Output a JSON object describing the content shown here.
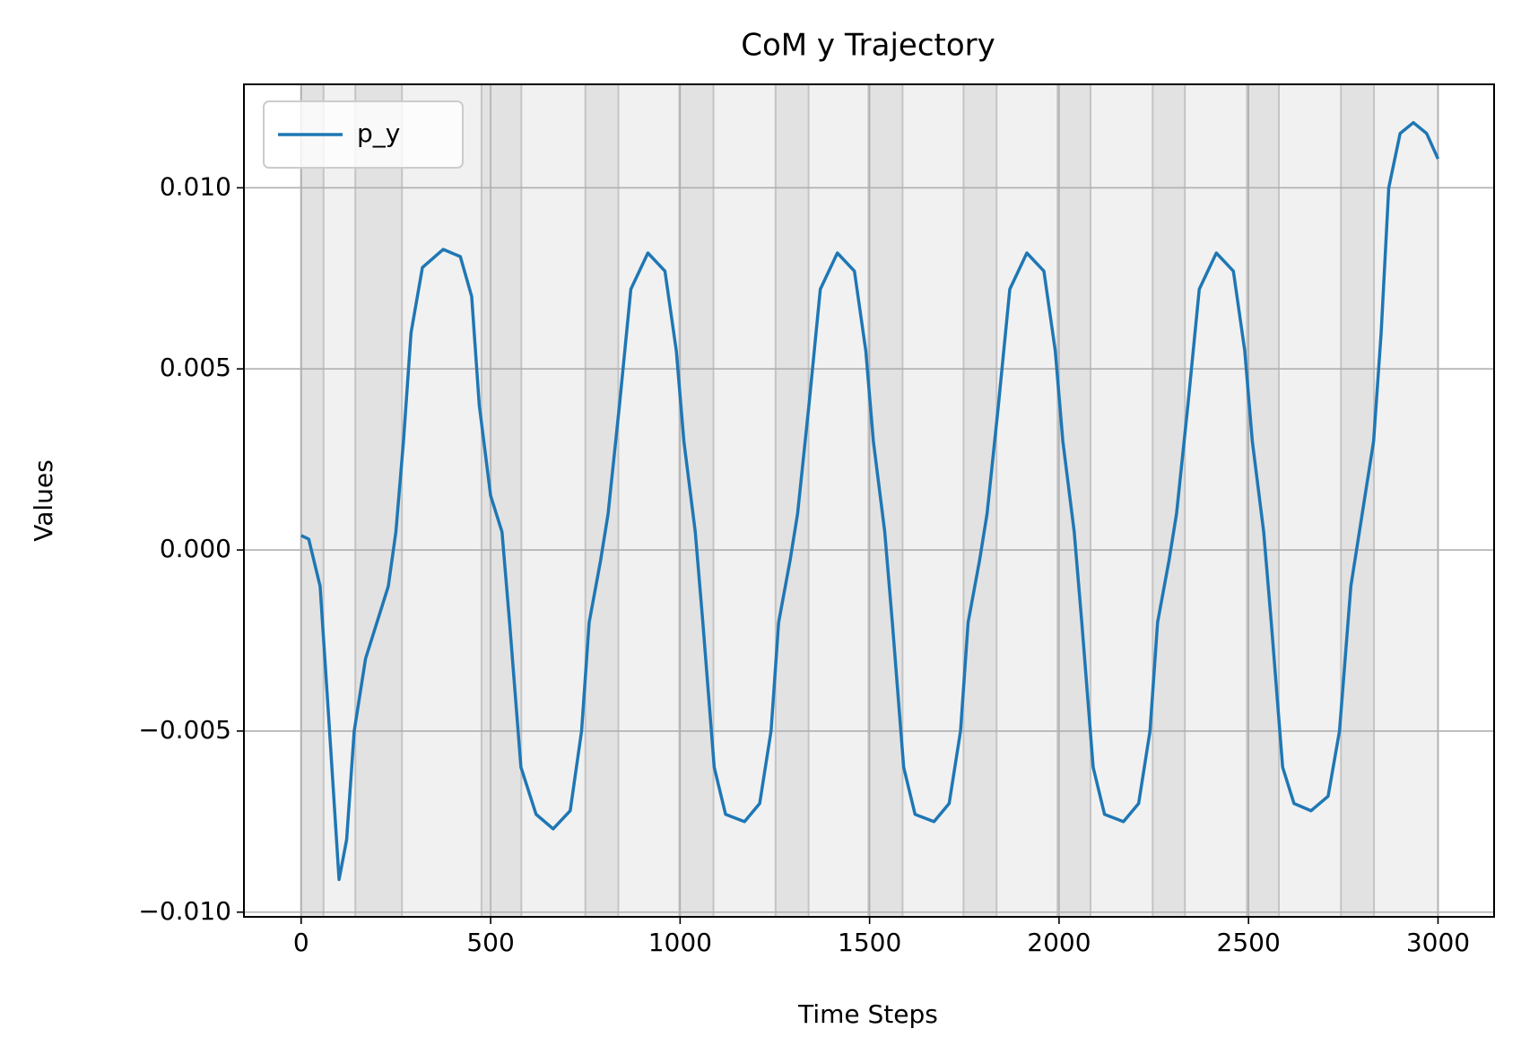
{
  "chart_data": {
    "type": "line",
    "title": "CoM y Trajectory",
    "x_label": "Time Steps",
    "y_label": "Values",
    "x": [
      0,
      20,
      50,
      75,
      100,
      120,
      140,
      170,
      200,
      230,
      250,
      270,
      290,
      320,
      375,
      420,
      450,
      470,
      500,
      530,
      550,
      580,
      620,
      665,
      710,
      740,
      760,
      790,
      810,
      840,
      870,
      915,
      960,
      990,
      1010,
      1040,
      1060,
      1090,
      1120,
      1170,
      1210,
      1240,
      1260,
      1290,
      1310,
      1340,
      1370,
      1415,
      1460,
      1490,
      1510,
      1540,
      1560,
      1590,
      1620,
      1670,
      1710,
      1740,
      1760,
      1790,
      1810,
      1840,
      1870,
      1915,
      1960,
      1990,
      2010,
      2040,
      2060,
      2090,
      2120,
      2170,
      2210,
      2240,
      2260,
      2290,
      2310,
      2340,
      2370,
      2415,
      2460,
      2490,
      2510,
      2540,
      2560,
      2590,
      2620,
      2665,
      2710,
      2740,
      2770,
      2800,
      2830,
      2850,
      2870,
      2900,
      2935,
      2970,
      3000
    ],
    "series": [
      {
        "name": "p_y",
        "color": "#1f77b4",
        "values": [
          0.0004,
          0.0003,
          -0.001,
          -0.005,
          -0.0091,
          -0.008,
          -0.005,
          -0.003,
          -0.002,
          -0.001,
          0.0005,
          0.003,
          0.006,
          0.0078,
          0.0083,
          0.0081,
          0.007,
          0.004,
          0.0015,
          0.0005,
          -0.002,
          -0.006,
          -0.0073,
          -0.0077,
          -0.0072,
          -0.005,
          -0.002,
          -0.0003,
          0.001,
          0.004,
          0.0072,
          0.0082,
          0.0077,
          0.0055,
          0.003,
          0.0005,
          -0.002,
          -0.006,
          -0.0073,
          -0.0075,
          -0.007,
          -0.005,
          -0.002,
          -0.0003,
          0.001,
          0.004,
          0.0072,
          0.0082,
          0.0077,
          0.0055,
          0.003,
          0.0005,
          -0.002,
          -0.006,
          -0.0073,
          -0.0075,
          -0.007,
          -0.005,
          -0.002,
          -0.0003,
          0.001,
          0.004,
          0.0072,
          0.0082,
          0.0077,
          0.0055,
          0.003,
          0.0005,
          -0.002,
          -0.006,
          -0.0073,
          -0.0075,
          -0.007,
          -0.005,
          -0.002,
          -0.0003,
          0.001,
          0.004,
          0.0072,
          0.0082,
          0.0077,
          0.0055,
          0.003,
          0.0005,
          -0.002,
          -0.006,
          -0.007,
          -0.0072,
          -0.0068,
          -0.005,
          -0.001,
          0.001,
          0.003,
          0.006,
          0.01,
          0.0115,
          0.0118,
          0.0115,
          0.0108
        ]
      }
    ],
    "background_span": [
      0,
      3000
    ],
    "background_color": "#f1f1f1",
    "phase_bands": [
      [
        0,
        59
      ],
      [
        143,
        266
      ],
      [
        476,
        581
      ],
      [
        750,
        837
      ],
      [
        998,
        1088
      ],
      [
        1252,
        1339
      ],
      [
        1497,
        1587
      ],
      [
        1748,
        1835
      ],
      [
        1996,
        2083
      ],
      [
        2247,
        2332
      ],
      [
        2496,
        2580
      ],
      [
        2744,
        2831
      ]
    ],
    "phase_color": "#e2e2e2",
    "xlim": [
      -151,
      3148
    ],
    "ylim": [
      -0.01013,
      0.012857
    ],
    "xticks": [
      0,
      500,
      1000,
      1500,
      2000,
      2500,
      3000
    ],
    "yticks": [
      {
        "value": -0.01,
        "label": "−0.010"
      },
      {
        "value": -0.005,
        "label": "−0.005"
      },
      {
        "value": 0,
        "label": "0.000"
      },
      {
        "value": 0.005,
        "label": "0.005"
      },
      {
        "value": 0.01,
        "label": "0.010"
      }
    ],
    "grid": true,
    "legend": "upper left"
  }
}
